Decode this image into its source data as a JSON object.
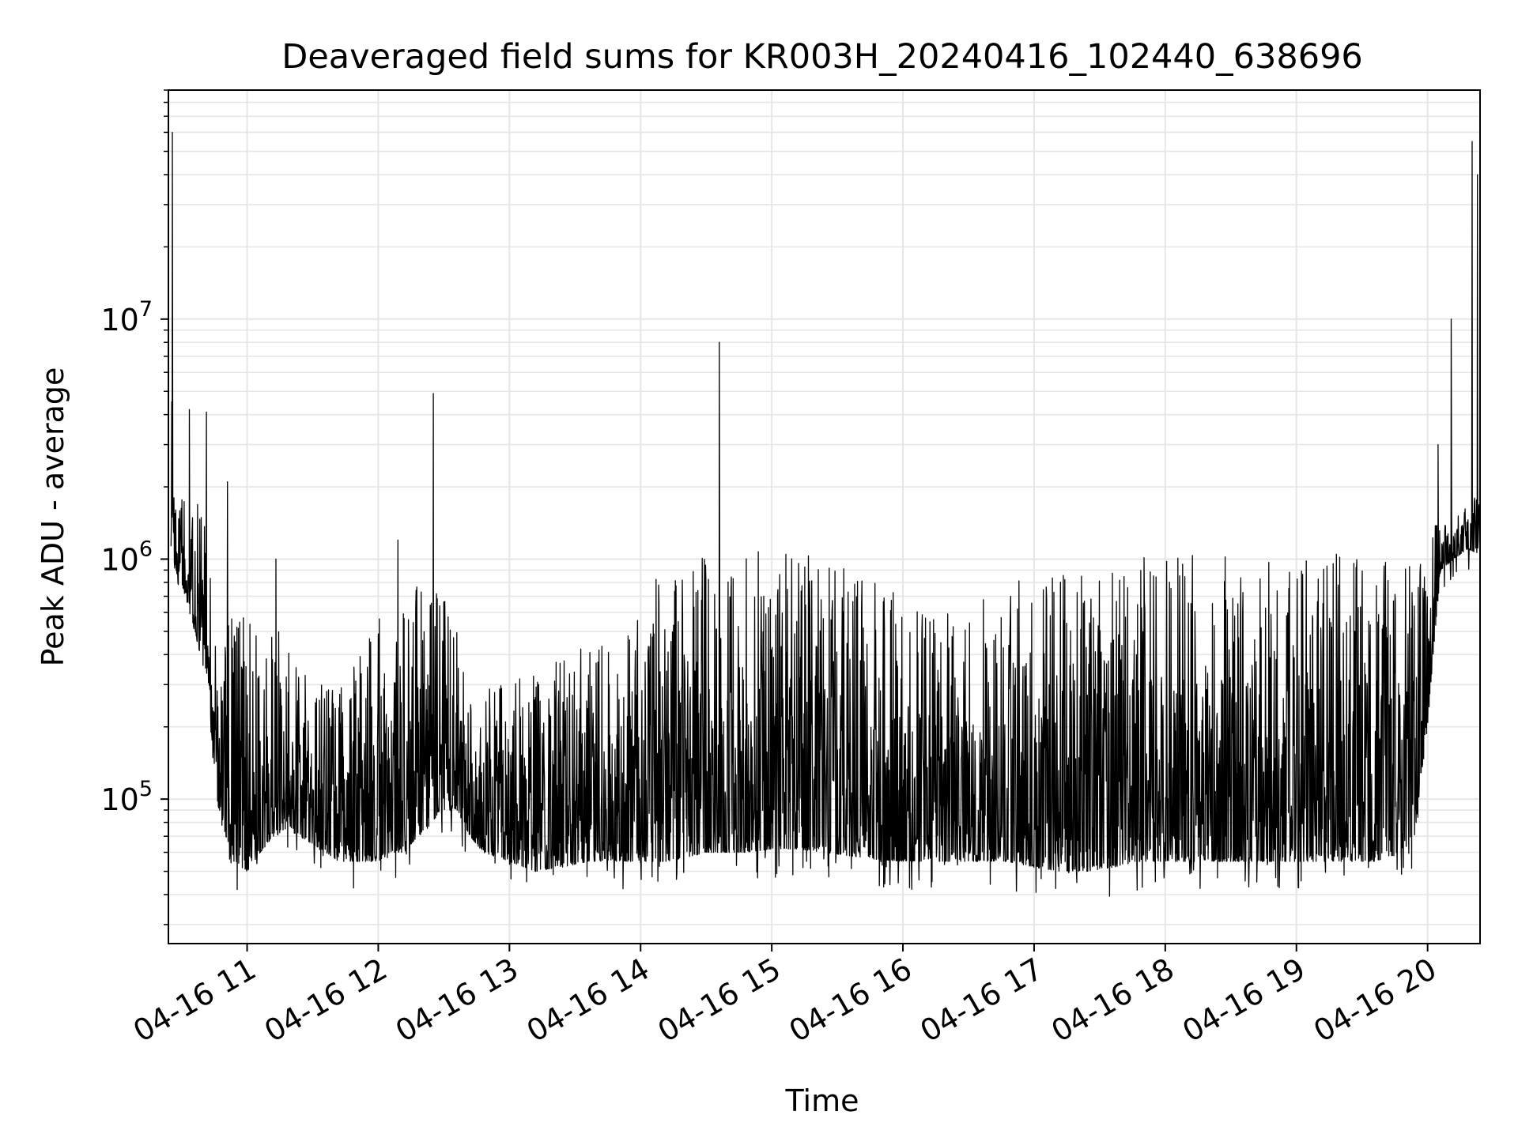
{
  "chart_data": {
    "type": "line",
    "title": "Deaveraged field sums for KR003H_20240416_102440_638696",
    "xlabel": "Time",
    "ylabel": "Peak ADU - average",
    "yscale": "log",
    "grid": true,
    "line_color": "#000000",
    "grid_color": "#e6e6e6",
    "xlim": [
      "2024-04-16 10:24",
      "2024-04-16 20:24"
    ],
    "ylim": [
      25000,
      90000000
    ],
    "x_tick_labels": [
      "04-16 11",
      "04-16 12",
      "04-16 13",
      "04-16 14",
      "04-16 15",
      "04-16 16",
      "04-16 17",
      "04-16 18",
      "04-16 19",
      "04-16 20"
    ],
    "x_tick_hours": [
      11,
      12,
      13,
      14,
      15,
      16,
      17,
      18,
      19,
      20
    ],
    "y_ticks": [
      {
        "value": 100000,
        "base": "10",
        "exp": "5"
      },
      {
        "value": 1000000,
        "base": "10",
        "exp": "6"
      },
      {
        "value": 10000000,
        "base": "10",
        "exp": "7"
      }
    ],
    "envelope": {
      "description_units": "x in decimal hours of 2024-04-16, y in Peak ADU - average",
      "x": [
        10.42,
        10.45,
        10.5,
        10.6,
        10.7,
        10.75,
        10.8,
        10.9,
        11.0,
        11.1,
        11.2,
        11.3,
        11.4,
        11.5,
        11.6,
        11.7,
        11.8,
        11.9,
        12.0,
        12.1,
        12.2,
        12.3,
        12.4,
        12.5,
        12.6,
        12.7,
        12.8,
        13.0,
        13.2,
        13.4,
        13.6,
        13.8,
        14.0,
        14.2,
        14.4,
        14.5,
        14.6,
        14.8,
        15.0,
        15.2,
        15.4,
        15.6,
        15.8,
        16.0,
        16.2,
        16.4,
        16.6,
        16.8,
        17.0,
        17.2,
        17.4,
        17.6,
        17.8,
        18.0,
        18.2,
        18.4,
        18.6,
        18.8,
        19.0,
        19.2,
        19.4,
        19.6,
        19.8,
        19.9,
        20.0,
        20.05,
        20.1,
        20.2,
        20.3,
        20.4
      ],
      "low": [
        1100000,
        900000,
        800000,
        500000,
        300000,
        120000,
        80000,
        55000,
        50000,
        60000,
        70000,
        75000,
        70000,
        65000,
        60000,
        55000,
        55000,
        55000,
        55000,
        60000,
        60000,
        70000,
        80000,
        90000,
        90000,
        70000,
        60000,
        55000,
        50000,
        52000,
        55000,
        55000,
        55000,
        55000,
        58000,
        60000,
        60000,
        60000,
        62000,
        62000,
        60000,
        58000,
        56000,
        55000,
        55000,
        55000,
        55000,
        55000,
        52000,
        50000,
        50000,
        52000,
        55000,
        55000,
        55000,
        55000,
        55000,
        55000,
        55000,
        55000,
        55000,
        55000,
        60000,
        70000,
        200000,
        450000,
        900000,
        1000000,
        1100000,
        1050000
      ],
      "high": [
        6000000,
        2400000,
        2000000,
        1800000,
        1600000,
        500000,
        500000,
        600000,
        600000,
        600000,
        500000,
        500000,
        400000,
        350000,
        300000,
        300000,
        350000,
        450000,
        600000,
        700000,
        700000,
        800000,
        800000,
        700000,
        500000,
        350000,
        300000,
        300000,
        350000,
        400000,
        450000,
        500000,
        700000,
        1000000,
        1000000,
        1050000,
        1050000,
        1050000,
        1100000,
        1100000,
        1000000,
        900000,
        800000,
        700000,
        600000,
        600000,
        700000,
        800000,
        900000,
        900000,
        950000,
        1000000,
        1050000,
        1050000,
        1050000,
        1050000,
        1050000,
        1050000,
        1050000,
        1050000,
        1050000,
        1000000,
        950000,
        1000000,
        900000,
        1400000,
        1500000,
        1600000,
        1700000,
        1900000
      ]
    },
    "spikes": [
      {
        "x": 10.43,
        "y": 60000000
      },
      {
        "x": 10.56,
        "y": 4200000
      },
      {
        "x": 10.69,
        "y": 4100000
      },
      {
        "x": 10.85,
        "y": 2100000
      },
      {
        "x": 11.22,
        "y": 1000000
      },
      {
        "x": 12.15,
        "y": 1200000
      },
      {
        "x": 12.42,
        "y": 4900000
      },
      {
        "x": 14.6,
        "y": 8000000
      },
      {
        "x": 20.08,
        "y": 3000000
      },
      {
        "x": 20.18,
        "y": 10000000
      },
      {
        "x": 20.34,
        "y": 55000000
      },
      {
        "x": 20.38,
        "y": 40000000
      }
    ]
  }
}
